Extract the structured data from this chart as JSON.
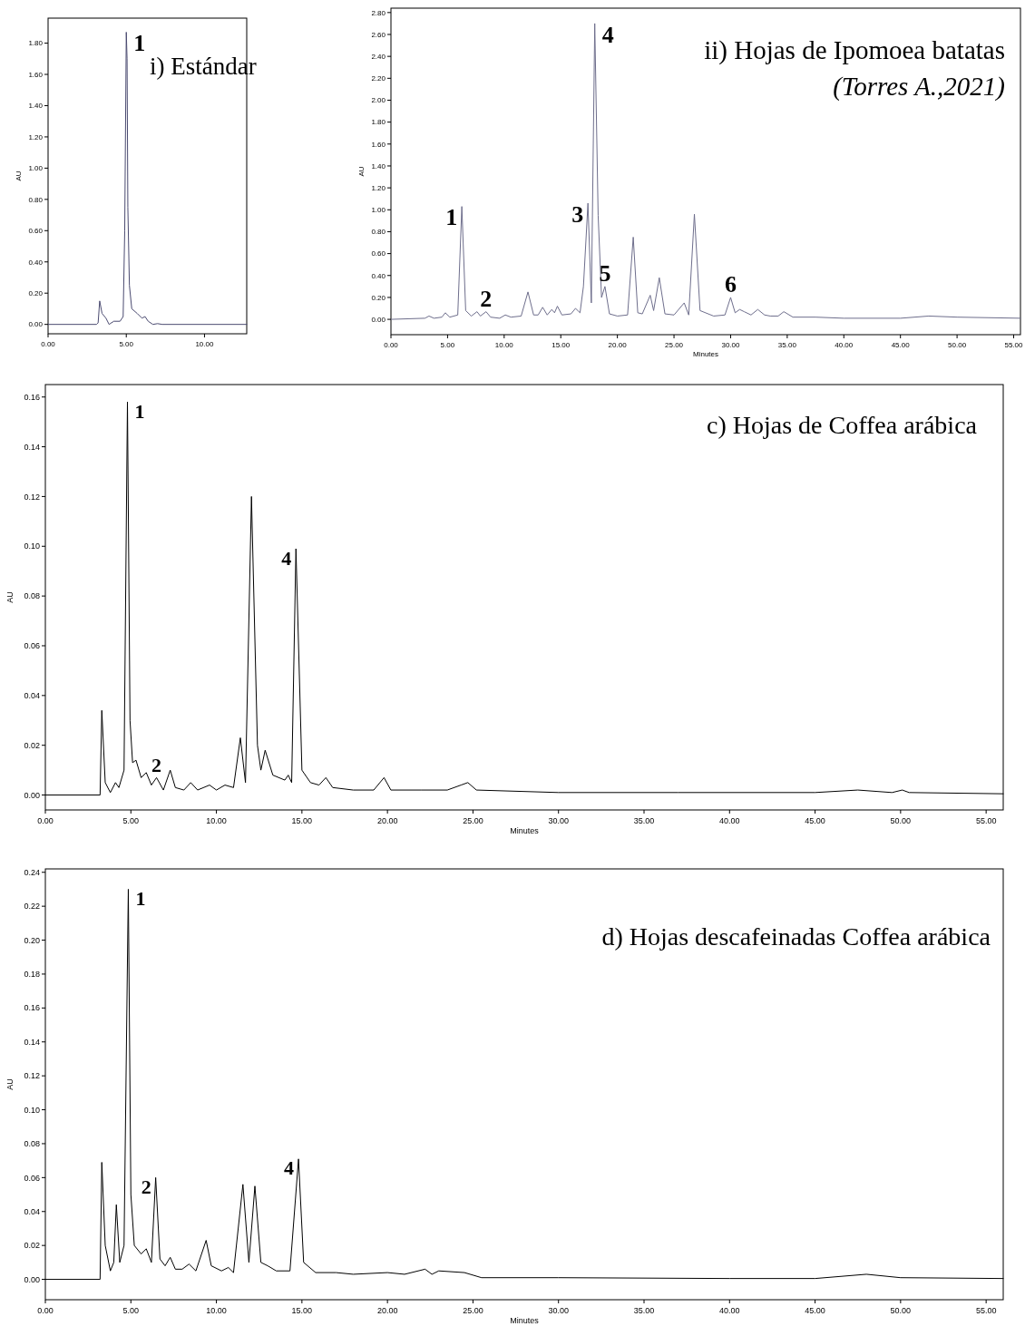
{
  "chart_data": [
    {
      "type": "line",
      "title": "i) Estándar",
      "ylabel": "AU",
      "xlim": [
        0,
        12.7
      ],
      "ylim": [
        -0.06,
        1.96
      ],
      "xticks": [
        {
          "value": 0,
          "label": "0.00"
        },
        {
          "value": 5,
          "label": "5.00"
        },
        {
          "value": 10,
          "label": "10.00"
        }
      ],
      "yticks": [
        {
          "value": 0,
          "label": "0.00"
        },
        {
          "value": 0.2,
          "label": "0.20"
        },
        {
          "value": 0.4,
          "label": "0.40"
        },
        {
          "value": 0.6,
          "label": "0.60"
        },
        {
          "value": 0.8,
          "label": "0.80"
        },
        {
          "value": 1,
          "label": "1.00"
        },
        {
          "value": 1.2,
          "label": "1.20"
        },
        {
          "value": 1.4,
          "label": "1.40"
        },
        {
          "value": 1.6,
          "label": "1.60"
        },
        {
          "value": 1.8,
          "label": "1.80"
        }
      ],
      "annotations": [
        {
          "text": "1",
          "x": 5.0,
          "y": 1.87
        }
      ],
      "series": [
        {
          "color": "#4a4a70",
          "x": [
            0,
            3.1,
            3.2,
            3.3,
            3.45,
            3.7,
            3.9,
            4.2,
            4.6,
            4.8,
            4.9,
            5.0,
            5.05,
            5.1,
            5.2,
            5.35,
            5.7,
            6.0,
            6.2,
            6.4,
            6.7,
            7.0,
            7.3,
            12.7
          ],
          "values": [
            0,
            0,
            0.01,
            0.15,
            0.07,
            0.04,
            0,
            0.02,
            0.02,
            0.05,
            0.6,
            1.87,
            1.7,
            0.75,
            0.25,
            0.1,
            0.07,
            0.04,
            0.05,
            0.02,
            0,
            0.005,
            0,
            0
          ]
        }
      ]
    },
    {
      "type": "line",
      "title": "ii) Hojas de Ipomoea batatas",
      "subtitle": "(Torres A.,2021)",
      "xlabel": "Minutes",
      "ylabel": "AU",
      "xlim": [
        0,
        55.6
      ],
      "ylim": [
        -0.14,
        2.84
      ],
      "xticks": [
        {
          "value": 0,
          "label": "0.00"
        },
        {
          "value": 5,
          "label": "5.00"
        },
        {
          "value": 10,
          "label": "10.00"
        },
        {
          "value": 15,
          "label": "15.00"
        },
        {
          "value": 20,
          "label": "20.00"
        },
        {
          "value": 25,
          "label": "25.00"
        },
        {
          "value": 30,
          "label": "30.00"
        },
        {
          "value": 35,
          "label": "35.00"
        },
        {
          "value": 40,
          "label": "40.00"
        },
        {
          "value": 45,
          "label": "45.00"
        },
        {
          "value": 50,
          "label": "50.00"
        },
        {
          "value": 55,
          "label": "55.00"
        }
      ],
      "yticks": [
        {
          "value": 0,
          "label": "0.00"
        },
        {
          "value": 0.2,
          "label": "0.20"
        },
        {
          "value": 0.4,
          "label": "0.40"
        },
        {
          "value": 0.6,
          "label": "0.60"
        },
        {
          "value": 0.8,
          "label": "0.80"
        },
        {
          "value": 1,
          "label": "1.00"
        },
        {
          "value": 1.2,
          "label": "1.20"
        },
        {
          "value": 1.4,
          "label": "1.40"
        },
        {
          "value": 1.6,
          "label": "1.60"
        },
        {
          "value": 1.8,
          "label": "1.80"
        },
        {
          "value": 2,
          "label": "2.00"
        },
        {
          "value": 2.2,
          "label": "2.20"
        },
        {
          "value": 2.4,
          "label": "2.40"
        },
        {
          "value": 2.6,
          "label": "2.60"
        },
        {
          "value": 2.8,
          "label": "2.80"
        }
      ],
      "annotations": [
        {
          "text": "1",
          "x": 6.26,
          "y": 1.03
        },
        {
          "text": "2",
          "x": 8.4,
          "y": 0.07
        },
        {
          "text": "3",
          "x": 17.4,
          "y": 1.06
        },
        {
          "text": "4",
          "x": 18.0,
          "y": 2.7
        },
        {
          "text": "5",
          "x": 18.9,
          "y": 0.3
        },
        {
          "text": "6",
          "x": 30.0,
          "y": 0.2
        }
      ],
      "series": [
        {
          "color": "#6e6e8c",
          "x": [
            0,
            3.0,
            3.36,
            3.8,
            4.5,
            4.8,
            5.2,
            5.9,
            6.26,
            6.6,
            7.1,
            7.6,
            7.9,
            8.4,
            8.8,
            9.6,
            10.1,
            10.6,
            11.5,
            12.1,
            12.6,
            13.0,
            13.4,
            13.8,
            14.2,
            14.45,
            14.7,
            15.1,
            15.9,
            16.3,
            16.7,
            17.0,
            17.4,
            17.7,
            18.0,
            18.3,
            18.6,
            18.9,
            19.3,
            20.0,
            20.9,
            21.4,
            21.8,
            22.2,
            22.9,
            23.2,
            23.7,
            24.2,
            25.0,
            25.9,
            26.3,
            26.8,
            27.3,
            28.5,
            29.5,
            30.0,
            30.4,
            30.8,
            31.2,
            31.8,
            32.4,
            33.0,
            33.5,
            34.2,
            34.7,
            35.5,
            37.5,
            40,
            45,
            47.5,
            50,
            55.6
          ],
          "values": [
            0,
            0.01,
            0.03,
            0.01,
            0.02,
            0.06,
            0.02,
            0.04,
            1.03,
            0.08,
            0.03,
            0.07,
            0.03,
            0.07,
            0.02,
            0.01,
            0.04,
            0.02,
            0.03,
            0.25,
            0.04,
            0.04,
            0.11,
            0.04,
            0.09,
            0.06,
            0.12,
            0.04,
            0.05,
            0.1,
            0.06,
            0.3,
            1.06,
            0.15,
            2.7,
            0.95,
            0.2,
            0.3,
            0.05,
            0.03,
            0.04,
            0.75,
            0.06,
            0.05,
            0.22,
            0.08,
            0.38,
            0.05,
            0.04,
            0.15,
            0.04,
            0.96,
            0.08,
            0.03,
            0.04,
            0.2,
            0.06,
            0.09,
            0.07,
            0.04,
            0.09,
            0.04,
            0.03,
            0.03,
            0.07,
            0.02,
            0.02,
            0.01,
            0.01,
            0.03,
            0.02,
            0.01
          ]
        }
      ]
    },
    {
      "type": "line",
      "title": "c) Hojas de Coffea arábica",
      "xlabel": "Minutes",
      "ylabel": "AU",
      "xlim": [
        0,
        56
      ],
      "ylim": [
        -0.006,
        0.165
      ],
      "xticks": [
        {
          "value": 0,
          "label": "0.00"
        },
        {
          "value": 5,
          "label": "5.00"
        },
        {
          "value": 10,
          "label": "10.00"
        },
        {
          "value": 15,
          "label": "15.00"
        },
        {
          "value": 20,
          "label": "20.00"
        },
        {
          "value": 25,
          "label": "25.00"
        },
        {
          "value": 30,
          "label": "30.00"
        },
        {
          "value": 35,
          "label": "35.00"
        },
        {
          "value": 40,
          "label": "40.00"
        },
        {
          "value": 45,
          "label": "45.00"
        },
        {
          "value": 50,
          "label": "50.00"
        },
        {
          "value": 55,
          "label": "55.00"
        }
      ],
      "yticks": [
        {
          "value": 0,
          "label": "0.00"
        },
        {
          "value": 0.02,
          "label": "0.02"
        },
        {
          "value": 0.04,
          "label": "0.04"
        },
        {
          "value": 0.06,
          "label": "0.06"
        },
        {
          "value": 0.08,
          "label": "0.08"
        },
        {
          "value": 0.1,
          "label": "0.10"
        },
        {
          "value": 0.12,
          "label": "0.12"
        },
        {
          "value": 0.14,
          "label": "0.14"
        },
        {
          "value": 0.16,
          "label": "0.16"
        }
      ],
      "annotations": [
        {
          "text": "1",
          "x": 4.8,
          "y": 0.158
        },
        {
          "text": "2",
          "x": 6.5,
          "y": 0.007
        },
        {
          "text": "4",
          "x": 14.65,
          "y": 0.099
        }
      ],
      "series": [
        {
          "color": "#000000",
          "x": [
            0,
            3.2,
            3.3,
            3.5,
            3.8,
            4.1,
            4.3,
            4.6,
            4.8,
            4.95,
            5.1,
            5.3,
            5.6,
            5.9,
            6.2,
            6.5,
            6.9,
            7.3,
            7.6,
            8.1,
            8.5,
            8.9,
            9.6,
            10.0,
            10.5,
            11.0,
            11.4,
            11.7,
            12.05,
            12.4,
            12.6,
            12.85,
            13.3,
            14.0,
            14.2,
            14.4,
            14.65,
            15.0,
            15.5,
            16.0,
            16.4,
            16.8,
            18,
            19.2,
            19.8,
            20.2,
            22,
            23.5,
            24.3,
            24.7,
            25.2,
            30,
            37,
            45,
            47.5,
            49.5,
            50.1,
            50.5,
            56
          ],
          "values": [
            0,
            0,
            0.034,
            0.005,
            0.001,
            0.005,
            0.003,
            0.01,
            0.158,
            0.03,
            0.013,
            0.014,
            0.007,
            0.009,
            0.004,
            0.007,
            0.002,
            0.01,
            0.003,
            0.002,
            0.005,
            0.002,
            0.004,
            0.002,
            0.004,
            0.003,
            0.023,
            0.005,
            0.12,
            0.02,
            0.01,
            0.018,
            0.008,
            0.006,
            0.008,
            0.005,
            0.099,
            0.01,
            0.005,
            0.004,
            0.007,
            0.003,
            0.002,
            0.002,
            0.007,
            0.002,
            0.002,
            0.002,
            0.004,
            0.005,
            0.002,
            0.001,
            0.001,
            0.001,
            0.002,
            0.001,
            0.002,
            0.001,
            0.0005
          ]
        }
      ]
    },
    {
      "type": "line",
      "title": "d) Hojas descafeinadas  Coffea arábica",
      "xlabel": "Minutes",
      "ylabel": "AU",
      "xlim": [
        0,
        56
      ],
      "ylim": [
        -0.012,
        0.242
      ],
      "xticks": [
        {
          "value": 0,
          "label": "0.00"
        },
        {
          "value": 5,
          "label": "5.00"
        },
        {
          "value": 10,
          "label": "10.00"
        },
        {
          "value": 15,
          "label": "15.00"
        },
        {
          "value": 20,
          "label": "20.00"
        },
        {
          "value": 25,
          "label": "25.00"
        },
        {
          "value": 30,
          "label": "30.00"
        },
        {
          "value": 35,
          "label": "35.00"
        },
        {
          "value": 40,
          "label": "40.00"
        },
        {
          "value": 45,
          "label": "45.00"
        },
        {
          "value": 50,
          "label": "50.00"
        },
        {
          "value": 55,
          "label": "55.00"
        }
      ],
      "yticks": [
        {
          "value": 0,
          "label": "0.00"
        },
        {
          "value": 0.02,
          "label": "0.02"
        },
        {
          "value": 0.04,
          "label": "0.04"
        },
        {
          "value": 0.06,
          "label": "0.06"
        },
        {
          "value": 0.08,
          "label": "0.08"
        },
        {
          "value": 0.1,
          "label": "0.10"
        },
        {
          "value": 0.12,
          "label": "0.12"
        },
        {
          "value": 0.14,
          "label": "0.14"
        },
        {
          "value": 0.16,
          "label": "0.16"
        },
        {
          "value": 0.18,
          "label": "0.18"
        },
        {
          "value": 0.2,
          "label": "0.20"
        },
        {
          "value": 0.22,
          "label": "0.22"
        },
        {
          "value": 0.24,
          "label": "0.24"
        }
      ],
      "annotations": [
        {
          "text": "1",
          "x": 4.85,
          "y": 0.23
        },
        {
          "text": "2",
          "x": 6.45,
          "y": 0.06
        },
        {
          "text": "4",
          "x": 14.8,
          "y": 0.071
        }
      ],
      "series": [
        {
          "color": "#000000",
          "x": [
            0,
            3.2,
            3.3,
            3.5,
            3.8,
            4.0,
            4.15,
            4.35,
            4.6,
            4.85,
            5.0,
            5.2,
            5.6,
            5.9,
            6.2,
            6.45,
            6.7,
            7.0,
            7.3,
            7.6,
            8.0,
            8.4,
            8.8,
            9.4,
            9.7,
            10.3,
            10.7,
            11.0,
            11.55,
            11.9,
            12.25,
            12.6,
            13.0,
            13.5,
            14.3,
            14.8,
            15.1,
            15.8,
            17,
            18,
            20,
            21,
            22.2,
            22.6,
            23.0,
            24.5,
            25.5,
            30,
            40,
            45,
            48,
            50,
            56
          ],
          "values": [
            0,
            0,
            0.069,
            0.02,
            0.005,
            0.01,
            0.044,
            0.01,
            0.02,
            0.23,
            0.05,
            0.02,
            0.015,
            0.018,
            0.01,
            0.06,
            0.012,
            0.008,
            0.013,
            0.006,
            0.006,
            0.009,
            0.005,
            0.023,
            0.008,
            0.005,
            0.007,
            0.004,
            0.056,
            0.01,
            0.055,
            0.01,
            0.008,
            0.005,
            0.005,
            0.071,
            0.01,
            0.004,
            0.004,
            0.003,
            0.004,
            0.003,
            0.006,
            0.003,
            0.005,
            0.004,
            0.001,
            0.001,
            0.0005,
            0.0005,
            0.003,
            0.001,
            0.0005
          ]
        }
      ]
    }
  ]
}
